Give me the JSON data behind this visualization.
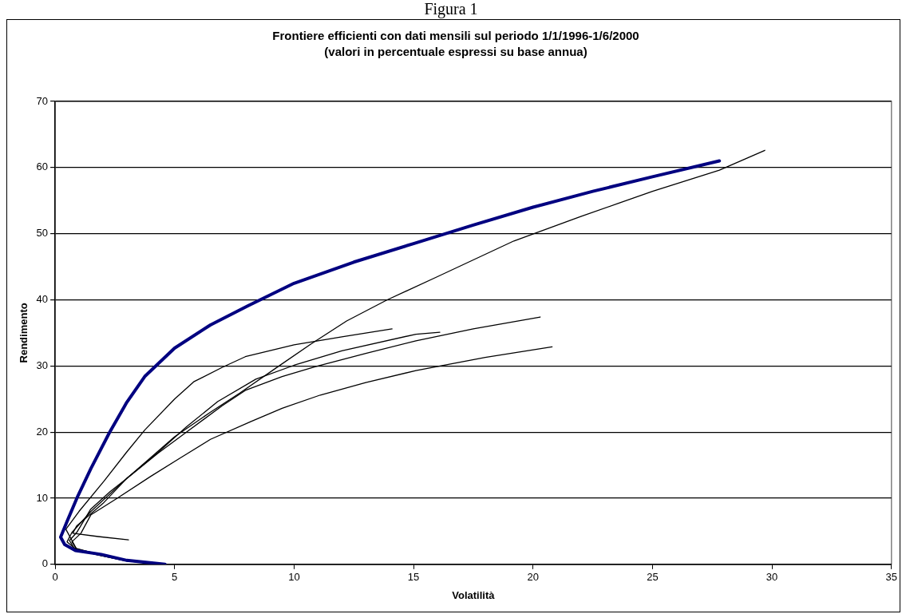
{
  "chart_data": {
    "type": "line",
    "title": "Frontiere efficienti con dati mensili sul periodo 1/1/1996-1/6/2000",
    "subtitle": "(valori in percentuale espressi su base annua)",
    "xlabel": "Volatilità",
    "ylabel": "Rendimento",
    "annotations": [
      "Figura 1"
    ],
    "xlim": [
      0,
      35
    ],
    "xticks": [
      0,
      5,
      10,
      15,
      20,
      25,
      30,
      35
    ],
    "ylim": [
      0,
      70
    ],
    "yticks": [
      0,
      10,
      20,
      30,
      40,
      50,
      60,
      70
    ],
    "grid": "y",
    "legend": false,
    "marker": "none",
    "line_style": "solid",
    "series": [
      {
        "color": "#000080",
        "x": [
          4.6,
          3.0,
          1.93,
          0.85,
          0.4,
          0.23,
          0.5,
          0.91,
          1.5,
          2.27,
          3.0,
          3.75,
          5.0,
          6.5,
          8.07,
          10,
          12.5,
          15,
          17.5,
          20,
          22.5,
          25,
          27.8
        ],
        "values": [
          0,
          0.6,
          1.5,
          2.1,
          3.0,
          4.1,
          6.5,
          10.0,
          14.5,
          19.9,
          24.5,
          28.4,
          32.7,
          36.2,
          39.1,
          42.5,
          45.7,
          48.5,
          51.3,
          54,
          56.4,
          58.6,
          61.0
        ]
      },
      {
        "color": "#000000",
        "x": [
          4.5,
          3.0,
          1.9,
          0.9,
          0.45,
          1.0,
          2.05,
          3.0,
          3.75,
          5.0,
          5.8,
          7.0,
          7.96,
          10,
          12,
          14.1
        ],
        "values": [
          0,
          0.6,
          1.5,
          2.3,
          5.3,
          8.0,
          12.6,
          17.0,
          20.3,
          25.0,
          27.6,
          29.8,
          31.4,
          33.2,
          34.4,
          35.6
        ]
      },
      {
        "color": "#000000",
        "x": [
          3.07,
          1.8,
          0.74,
          0.9,
          2.0,
          3.0,
          4.3,
          5.5,
          6.8,
          8.4,
          10,
          12,
          15.1,
          16.1
        ],
        "values": [
          3.7,
          4.2,
          4.7,
          5.8,
          9.2,
          13.0,
          16.9,
          20.8,
          24.6,
          28.0,
          30.1,
          32.3,
          34.8,
          35.1
        ]
      },
      {
        "color": "#000000",
        "x": [
          4.5,
          3.0,
          1.8,
          0.8,
          0.6,
          0.9,
          1.48,
          2.3,
          3.18,
          4.3,
          5.46,
          7.0,
          7.96,
          9.5,
          10.9,
          13,
          15.1,
          17.5,
          20.3
        ],
        "values": [
          0,
          0.5,
          1.4,
          2.4,
          3.6,
          4.8,
          8.3,
          11.0,
          13.5,
          16.8,
          19.9,
          24.0,
          26.3,
          28.4,
          29.9,
          31.9,
          33.8,
          35.6,
          37.4
        ]
      },
      {
        "color": "#000000",
        "x": [
          4.5,
          3.0,
          1.8,
          0.9,
          0.7,
          1.08,
          1.5,
          2.6,
          4.0,
          5.2,
          6.5,
          8.2,
          9.5,
          11.1,
          13,
          15.1,
          18,
          20.8
        ],
        "values": [
          0,
          0.5,
          1.4,
          2.3,
          3.4,
          4.7,
          7.5,
          10.0,
          13.3,
          16.0,
          18.9,
          21.6,
          23.6,
          25.6,
          27.5,
          29.3,
          31.3,
          32.9
        ]
      },
      {
        "color": "#000000",
        "x": [
          4.5,
          3.0,
          1.8,
          0.8,
          0.5,
          0.7,
          1.5,
          3.0,
          5.0,
          6.5,
          7.73,
          9.33,
          10.7,
          12.2,
          13.9,
          16,
          19.2,
          22,
          25,
          27.8,
          29.7
        ],
        "values": [
          0,
          0.6,
          1.5,
          2.5,
          3.4,
          4.8,
          8.0,
          13.0,
          19.3,
          23.0,
          25.9,
          29.9,
          33.3,
          36.8,
          40.0,
          43.5,
          48.9,
          52.6,
          56.4,
          59.6,
          62.6
        ]
      }
    ]
  }
}
